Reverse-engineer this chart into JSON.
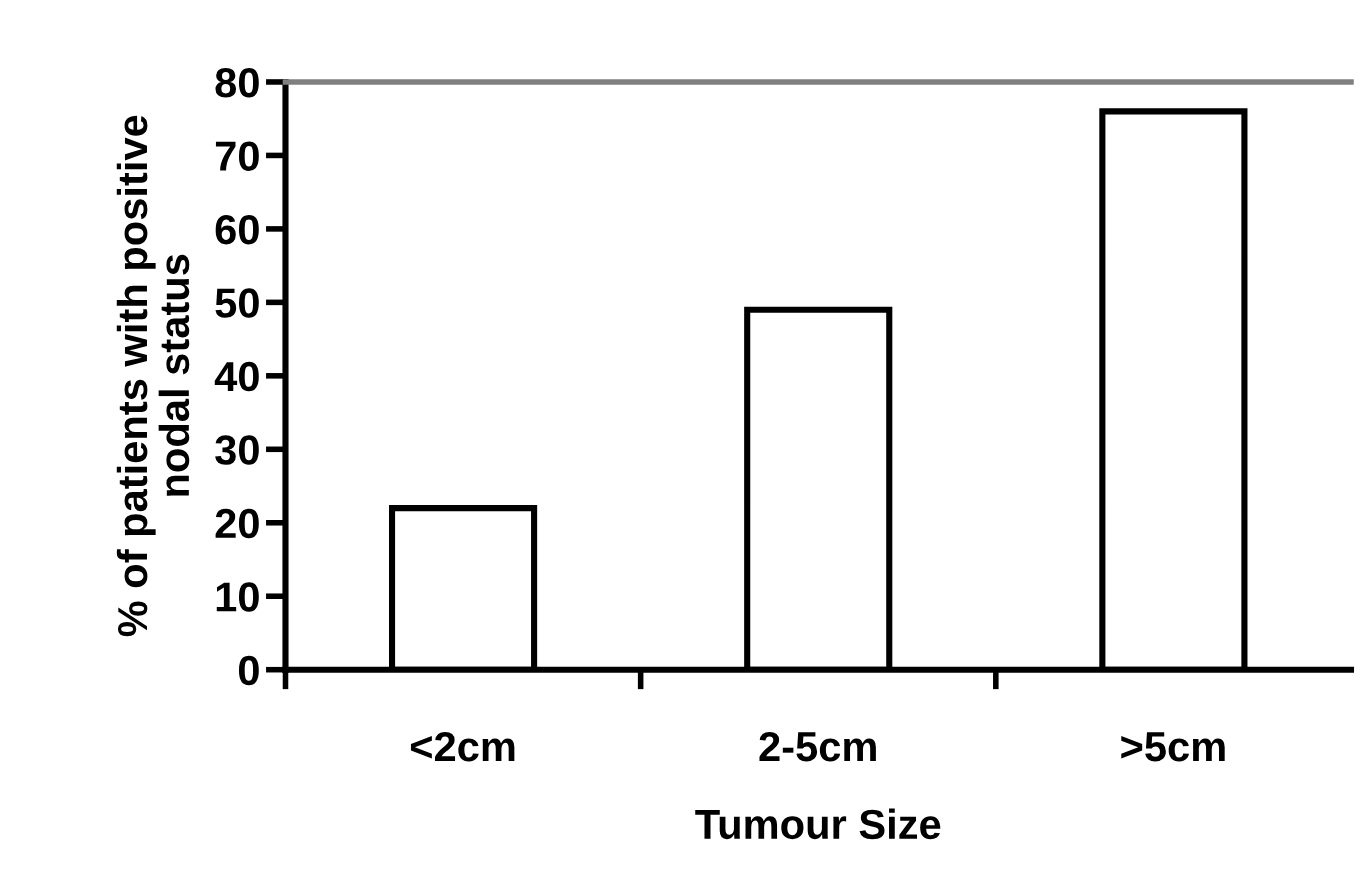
{
  "chart_data": {
    "type": "bar",
    "xlabel": "Tumour Size",
    "ylabel": "% of patients with positive\nnodal status",
    "categories": [
      "<2cm",
      "2-5cm",
      ">5cm"
    ],
    "series": [
      {
        "color": "#ffffff",
        "values": [
          22,
          49,
          76
        ]
      }
    ],
    "ylim": [
      0,
      80
    ],
    "yticks": [
      0,
      10,
      20,
      30,
      40,
      50,
      60,
      70,
      80
    ],
    "grid": false
  }
}
